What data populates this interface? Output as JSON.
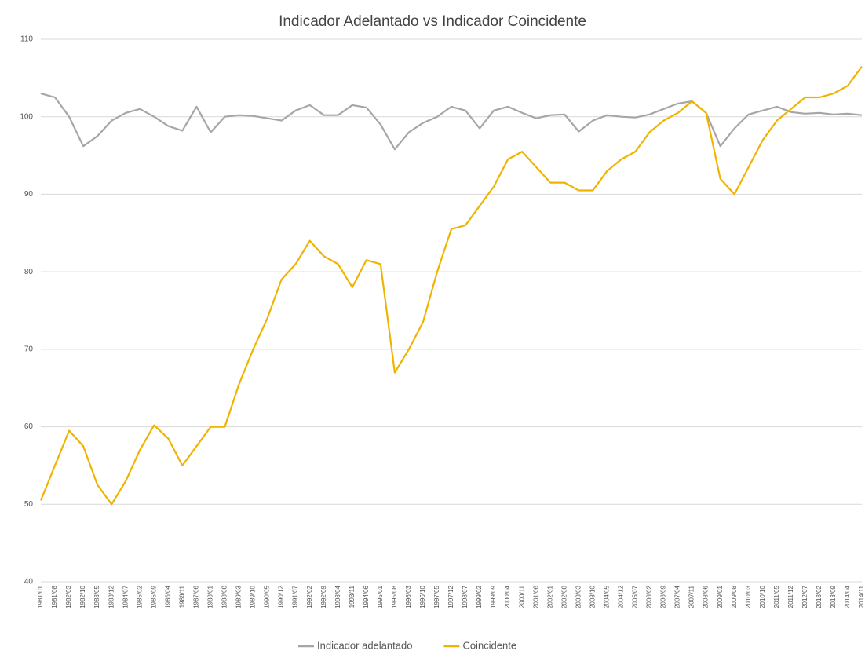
{
  "chart_data": {
    "type": "line",
    "title": "Indicador Adelantado vs Indicador Coincidente",
    "categories": [
      "1981/01",
      "1981/08",
      "1982/03",
      "1982/10",
      "1983/05",
      "1983/12",
      "1984/07",
      "1985/02",
      "1985/09",
      "1986/04",
      "1986/11",
      "1987/06",
      "1988/01",
      "1988/08",
      "1989/03",
      "1989/10",
      "1990/05",
      "1990/12",
      "1991/07",
      "1992/02",
      "1992/09",
      "1993/04",
      "1993/11",
      "1994/06",
      "1995/01",
      "1995/08",
      "1996/03",
      "1996/10",
      "1997/05",
      "1997/12",
      "1998/07",
      "1999/02",
      "1999/09",
      "2000/04",
      "2000/11",
      "2001/06",
      "2002/01",
      "2002/08",
      "2003/03",
      "2003/10",
      "2004/05",
      "2004/12",
      "2005/07",
      "2006/02",
      "2006/09",
      "2007/04",
      "2007/11",
      "2008/06",
      "2009/01",
      "2009/08",
      "2010/03",
      "2010/10",
      "2011/05",
      "2011/12",
      "2012/07",
      "2013/02",
      "2013/09",
      "2014/04",
      "2014/11"
    ],
    "series": [
      {
        "name": "Indicador adelantado",
        "color": "#a6a6a6",
        "values": [
          103,
          102.5,
          100,
          96.2,
          97.5,
          99.5,
          100.5,
          101,
          100,
          98.8,
          98.2,
          101.3,
          98,
          100,
          100.2,
          100.1,
          99.8,
          99.5,
          100.8,
          101.5,
          100.2,
          100.2,
          101.5,
          101.2,
          99,
          95.8,
          98,
          99.2,
          100,
          101.3,
          100.8,
          98.5,
          100.8,
          101.3,
          100.5,
          99.8,
          100.2,
          100.3,
          98.1,
          99.5,
          100.2,
          100,
          99.9,
          100.3,
          101,
          101.7,
          102,
          100.5,
          96.2,
          98.5,
          100.3,
          100.8,
          101.3,
          100.6,
          100.4,
          100.5,
          100.3,
          100.4,
          100.2
        ]
      },
      {
        "name": "Coincidente",
        "color": "#f0b400",
        "values": [
          50.5,
          55,
          59.5,
          57.5,
          52.5,
          50,
          53,
          57,
          60.2,
          58.5,
          55,
          57.5,
          60,
          60,
          65.5,
          70,
          74,
          79,
          81,
          84,
          82,
          81,
          78,
          81.5,
          81,
          67,
          70,
          73.5,
          80,
          85.5,
          86,
          88.5,
          91,
          94.5,
          95.5,
          93.5,
          91.5,
          91.5,
          90.5,
          90.5,
          93,
          94.5,
          95.5,
          98,
          99.5,
          100.5,
          102,
          100.5,
          92,
          90,
          93.5,
          97,
          99.5,
          101,
          102.5,
          102.5,
          103,
          104,
          106.5
        ]
      }
    ],
    "ylim": [
      40,
      110
    ],
    "yticks": [
      40,
      50,
      60,
      70,
      80,
      90,
      100,
      110
    ],
    "grid": true,
    "legend": "bottom"
  }
}
